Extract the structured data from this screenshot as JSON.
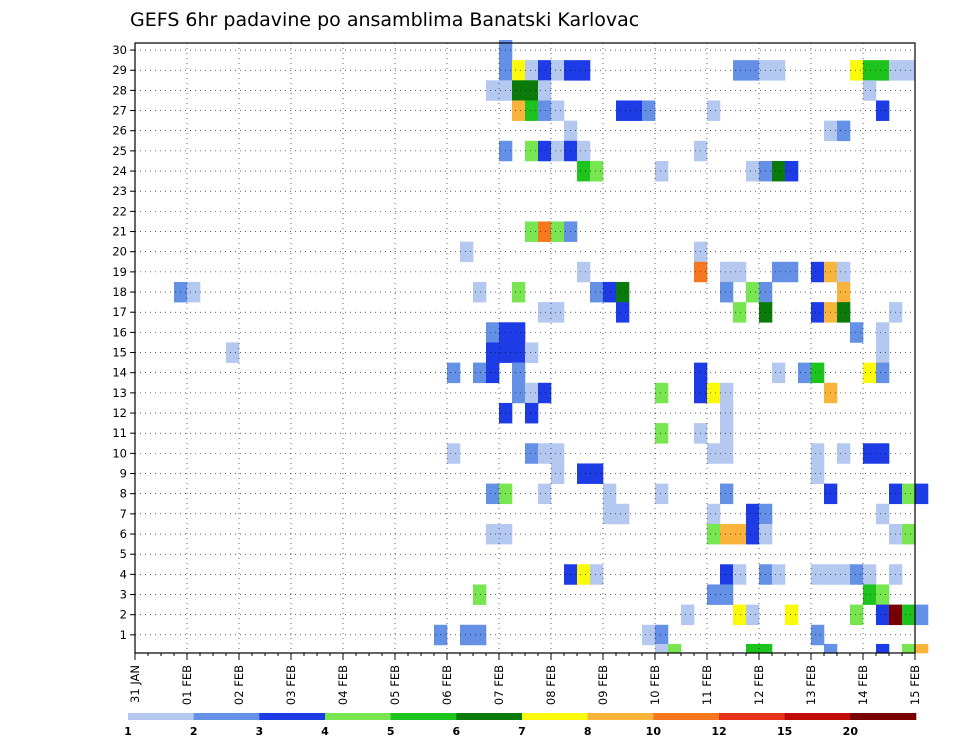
{
  "chart_data": {
    "type": "heatmap",
    "title": "GEFS 6hr padavine po ansamblima Banatski Karlovac",
    "x_start": "31 JAN",
    "x_tick_labels": [
      "31 JAN",
      "01 FEB",
      "02 FEB",
      "03 FEB",
      "04 FEB",
      "05 FEB",
      "06 FEB",
      "07 FEB",
      "08 FEB",
      "09 FEB",
      "10 FEB",
      "11 FEB",
      "12 FEB",
      "13 FEB",
      "14 FEB",
      "15 FEB"
    ],
    "x_step_hours": 6,
    "y_tick_labels": [
      "1",
      "2",
      "3",
      "4",
      "5",
      "6",
      "7",
      "8",
      "9",
      "10",
      "11",
      "12",
      "13",
      "14",
      "15",
      "16",
      "17",
      "18",
      "19",
      "20",
      "21",
      "22",
      "23",
      "24",
      "25",
      "26",
      "27",
      "28",
      "29",
      "30"
    ],
    "y_range": [
      0,
      30
    ],
    "grid": true,
    "legend_position": "bottom",
    "legend_thresholds": [
      "1",
      "2",
      "3",
      "4",
      "5",
      "6",
      "7",
      "8",
      "10",
      "12",
      "15",
      "20"
    ],
    "level_colors": [
      "#b4c8f0",
      "#6490e6",
      "#1e3ce6",
      "#78e650",
      "#1ec41e",
      "#0a7a0a",
      "#fafa0a",
      "#fab43c",
      "#f5781e",
      "#e63218",
      "#c00a0a",
      "#780000"
    ],
    "note_cells": "cells are [member (1-30, 0 = below axis), 6h step index from 31 JAN 00, color level 1-12]",
    "cells": [
      [
        30,
        28,
        2
      ],
      [
        29,
        28,
        2
      ],
      [
        29,
        29,
        7
      ],
      [
        29,
        30,
        1
      ],
      [
        29,
        31,
        3
      ],
      [
        29,
        32,
        1
      ],
      [
        29,
        33,
        3
      ],
      [
        29,
        34,
        3
      ],
      [
        29,
        46,
        2
      ],
      [
        29,
        47,
        2
      ],
      [
        29,
        48,
        1
      ],
      [
        29,
        49,
        1
      ],
      [
        29,
        55,
        7
      ],
      [
        29,
        56,
        5
      ],
      [
        29,
        57,
        5
      ],
      [
        29,
        58,
        1
      ],
      [
        29,
        59,
        1
      ],
      [
        28,
        27,
        1
      ],
      [
        28,
        28,
        1
      ],
      [
        28,
        29,
        6
      ],
      [
        28,
        30,
        6
      ],
      [
        28,
        31,
        1
      ],
      [
        28,
        56,
        1
      ],
      [
        27,
        29,
        8
      ],
      [
        27,
        30,
        5
      ],
      [
        27,
        31,
        2
      ],
      [
        27,
        32,
        1
      ],
      [
        27,
        37,
        3
      ],
      [
        27,
        38,
        3
      ],
      [
        27,
        39,
        2
      ],
      [
        27,
        44,
        1
      ],
      [
        27,
        57,
        3
      ],
      [
        26,
        33,
        1
      ],
      [
        26,
        53,
        1
      ],
      [
        26,
        54,
        2
      ],
      [
        25,
        28,
        2
      ],
      [
        25,
        30,
        4
      ],
      [
        25,
        31,
        3
      ],
      [
        25,
        32,
        1
      ],
      [
        25,
        33,
        3
      ],
      [
        25,
        34,
        1
      ],
      [
        25,
        43,
        1
      ],
      [
        24,
        34,
        5
      ],
      [
        24,
        35,
        4
      ],
      [
        24,
        40,
        1
      ],
      [
        24,
        47,
        1
      ],
      [
        24,
        48,
        2
      ],
      [
        24,
        49,
        6
      ],
      [
        24,
        50,
        3
      ],
      [
        21,
        30,
        4
      ],
      [
        21,
        31,
        9
      ],
      [
        21,
        32,
        4
      ],
      [
        21,
        33,
        2
      ],
      [
        20,
        25,
        1
      ],
      [
        20,
        43,
        1
      ],
      [
        19,
        34,
        1
      ],
      [
        19,
        43,
        9
      ],
      [
        19,
        45,
        1
      ],
      [
        19,
        46,
        1
      ],
      [
        19,
        49,
        2
      ],
      [
        19,
        50,
        2
      ],
      [
        19,
        52,
        3
      ],
      [
        19,
        53,
        8
      ],
      [
        19,
        54,
        1
      ],
      [
        18,
        3,
        2
      ],
      [
        18,
        4,
        1
      ],
      [
        18,
        26,
        1
      ],
      [
        18,
        29,
        4
      ],
      [
        18,
        35,
        2
      ],
      [
        18,
        36,
        3
      ],
      [
        18,
        37,
        6
      ],
      [
        18,
        45,
        2
      ],
      [
        18,
        47,
        4
      ],
      [
        18,
        48,
        2
      ],
      [
        18,
        54,
        8
      ],
      [
        17,
        31,
        1
      ],
      [
        17,
        32,
        1
      ],
      [
        17,
        37,
        3
      ],
      [
        17,
        46,
        4
      ],
      [
        17,
        48,
        6
      ],
      [
        17,
        52,
        3
      ],
      [
        17,
        53,
        8
      ],
      [
        17,
        54,
        6
      ],
      [
        17,
        58,
        1
      ],
      [
        16,
        27,
        2
      ],
      [
        16,
        28,
        3
      ],
      [
        16,
        29,
        3
      ],
      [
        16,
        55,
        2
      ],
      [
        16,
        57,
        1
      ],
      [
        15,
        7,
        1
      ],
      [
        15,
        27,
        3
      ],
      [
        15,
        28,
        3
      ],
      [
        15,
        29,
        3
      ],
      [
        15,
        30,
        1
      ],
      [
        15,
        57,
        1
      ],
      [
        14,
        24,
        2
      ],
      [
        14,
        26,
        2
      ],
      [
        14,
        27,
        3
      ],
      [
        14,
        29,
        2
      ],
      [
        14,
        43,
        3
      ],
      [
        14,
        49,
        1
      ],
      [
        14,
        51,
        2
      ],
      [
        14,
        52,
        5
      ],
      [
        14,
        56,
        7
      ],
      [
        14,
        57,
        2
      ],
      [
        13,
        29,
        2
      ],
      [
        13,
        30,
        1
      ],
      [
        13,
        31,
        3
      ],
      [
        13,
        40,
        4
      ],
      [
        13,
        43,
        3
      ],
      [
        13,
        44,
        7
      ],
      [
        13,
        45,
        1
      ],
      [
        13,
        53,
        8
      ],
      [
        12,
        28,
        3
      ],
      [
        12,
        30,
        3
      ],
      [
        12,
        45,
        1
      ],
      [
        11,
        40,
        4
      ],
      [
        11,
        43,
        1
      ],
      [
        11,
        45,
        1
      ],
      [
        10,
        24,
        1
      ],
      [
        10,
        30,
        2
      ],
      [
        10,
        31,
        1
      ],
      [
        10,
        32,
        1
      ],
      [
        10,
        44,
        1
      ],
      [
        10,
        45,
        1
      ],
      [
        10,
        52,
        1
      ],
      [
        10,
        54,
        1
      ],
      [
        10,
        56,
        3
      ],
      [
        10,
        57,
        3
      ],
      [
        9,
        32,
        1
      ],
      [
        9,
        34,
        3
      ],
      [
        9,
        35,
        3
      ],
      [
        9,
        52,
        1
      ],
      [
        8,
        27,
        2
      ],
      [
        8,
        28,
        4
      ],
      [
        8,
        31,
        1
      ],
      [
        8,
        36,
        1
      ],
      [
        8,
        40,
        1
      ],
      [
        8,
        45,
        2
      ],
      [
        8,
        53,
        3
      ],
      [
        8,
        58,
        3
      ],
      [
        8,
        59,
        4
      ],
      [
        8,
        60,
        3
      ],
      [
        7,
        36,
        1
      ],
      [
        7,
        37,
        1
      ],
      [
        7,
        44,
        1
      ],
      [
        7,
        47,
        3
      ],
      [
        7,
        48,
        2
      ],
      [
        7,
        57,
        1
      ],
      [
        6,
        27,
        1
      ],
      [
        6,
        28,
        1
      ],
      [
        6,
        44,
        4
      ],
      [
        6,
        45,
        8
      ],
      [
        6,
        46,
        8
      ],
      [
        6,
        47,
        3
      ],
      [
        6,
        48,
        1
      ],
      [
        6,
        58,
        1
      ],
      [
        6,
        59,
        4
      ],
      [
        4,
        33,
        3
      ],
      [
        4,
        34,
        7
      ],
      [
        4,
        35,
        1
      ],
      [
        4,
        45,
        3
      ],
      [
        4,
        46,
        1
      ],
      [
        4,
        48,
        2
      ],
      [
        4,
        49,
        1
      ],
      [
        4,
        52,
        1
      ],
      [
        4,
        53,
        1
      ],
      [
        4,
        54,
        1
      ],
      [
        4,
        55,
        2
      ],
      [
        4,
        56,
        1
      ],
      [
        4,
        58,
        1
      ],
      [
        3,
        26,
        4
      ],
      [
        3,
        44,
        2
      ],
      [
        3,
        45,
        2
      ],
      [
        3,
        56,
        5
      ],
      [
        3,
        57,
        4
      ],
      [
        2,
        42,
        1
      ],
      [
        2,
        46,
        7
      ],
      [
        2,
        47,
        1
      ],
      [
        2,
        50,
        7
      ],
      [
        2,
        55,
        4
      ],
      [
        2,
        57,
        3
      ],
      [
        2,
        58,
        12
      ],
      [
        2,
        59,
        5
      ],
      [
        2,
        60,
        2
      ],
      [
        1,
        23,
        2
      ],
      [
        1,
        25,
        2
      ],
      [
        1,
        26,
        2
      ],
      [
        1,
        39,
        1
      ],
      [
        1,
        40,
        2
      ],
      [
        1,
        52,
        2
      ],
      [
        0,
        40,
        1
      ],
      [
        0,
        41,
        4
      ],
      [
        0,
        47,
        5
      ],
      [
        0,
        48,
        5
      ],
      [
        0,
        53,
        2
      ],
      [
        0,
        57,
        3
      ],
      [
        0,
        59,
        4
      ],
      [
        0,
        60,
        8
      ]
    ]
  }
}
